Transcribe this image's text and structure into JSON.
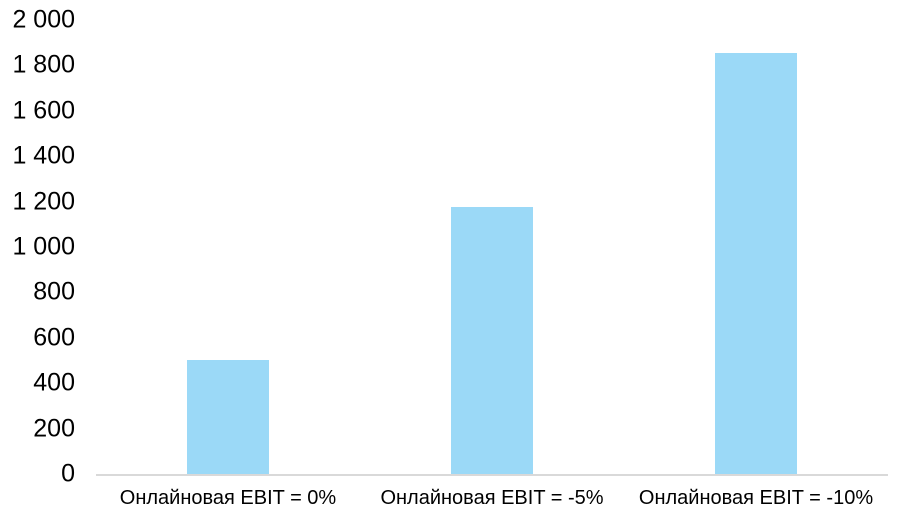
{
  "chart_data": {
    "type": "bar",
    "title": "",
    "xlabel": "",
    "ylabel": "",
    "categories": [
      "Онлайновая EBIT = 0%",
      "Онлайновая EBIT = -5%",
      "Онлайновая EBIT = -10%"
    ],
    "values": [
      500,
      1175,
      1855
    ],
    "ylim": [
      0,
      2000
    ],
    "ytick_step": 200,
    "yticks": [
      {
        "value": 0,
        "label": "0"
      },
      {
        "value": 200,
        "label": "200"
      },
      {
        "value": 400,
        "label": "400"
      },
      {
        "value": 600,
        "label": "600"
      },
      {
        "value": 800,
        "label": "800"
      },
      {
        "value": 1000,
        "label": "1 000"
      },
      {
        "value": 1200,
        "label": "1 200"
      },
      {
        "value": 1400,
        "label": "1 400"
      },
      {
        "value": 1600,
        "label": "1 600"
      },
      {
        "value": 1800,
        "label": "1 800"
      },
      {
        "value": 2000,
        "label": "2 000"
      }
    ],
    "grid": false,
    "legend_position": "none",
    "colors": {
      "bar_fill": "#9BD9F7",
      "axis_line": "#D9D9D9",
      "text": "#000000",
      "background": "#FFFFFF"
    }
  }
}
